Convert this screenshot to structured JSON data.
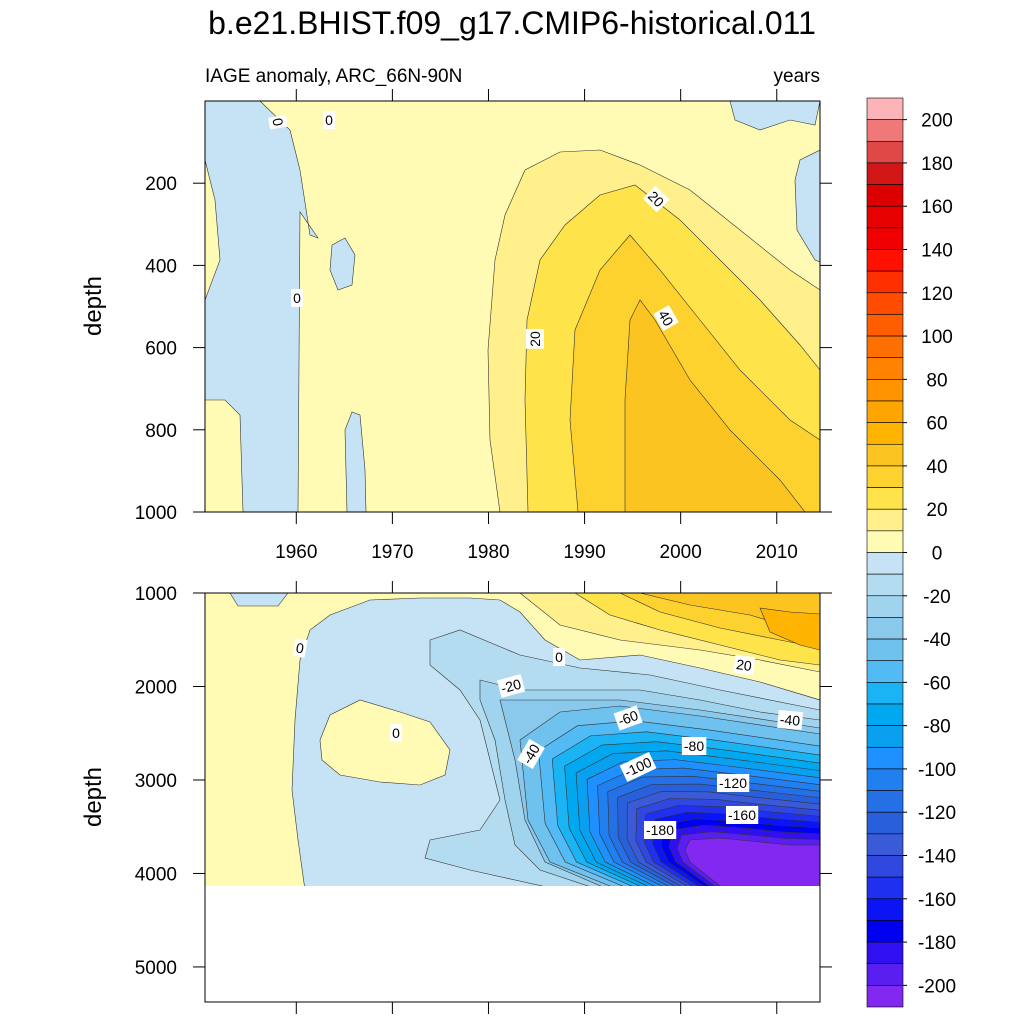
{
  "chart_data": {
    "type": "contour",
    "title": "b.e21.BHIST.f09_g17.CMIP6-historical.011",
    "panels": [
      {
        "left_label": "IAGE anomaly, ARC_66N-90N",
        "right_label": "years",
        "ylabel": "depth",
        "xlim": [
          1950.5,
          2014.5
        ],
        "xticks": [
          1960,
          1970,
          1980,
          1990,
          2000,
          2010
        ],
        "ylim": [
          0,
          1000
        ],
        "yticks": [
          200,
          400,
          600,
          800,
          1000
        ],
        "y_reversed": true,
        "contour_labels": [
          0,
          0,
          0,
          20,
          20,
          40
        ]
      },
      {
        "ylabel": "depth",
        "xlim": [
          1950.5,
          2014.5
        ],
        "xticks": [
          1960,
          1970,
          1980,
          1990,
          2000,
          2010
        ],
        "ylim": [
          1000,
          5375
        ],
        "yticks": [
          1000,
          2000,
          3000,
          4000,
          5000
        ],
        "y_reversed": true,
        "contour_labels": [
          0,
          -20,
          0,
          20,
          0,
          -40,
          -60,
          -80,
          -40,
          -100,
          -120,
          -160,
          -180
        ]
      }
    ],
    "colorbar": {
      "clim": [
        -210,
        210
      ],
      "ticks": [
        200,
        180,
        160,
        140,
        120,
        100,
        80,
        60,
        40,
        20,
        0,
        -20,
        -40,
        -60,
        -80,
        -100,
        -120,
        -140,
        -160,
        -180,
        -200
      ],
      "colors": [
        "#fcb4b8",
        "#f07878",
        "#e04848",
        "#d21616",
        "#dc0000",
        "#e60000",
        "#f00000",
        "#ff1000",
        "#ff3000",
        "#ff4c00",
        "#ff5e00",
        "#ff7000",
        "#ff8200",
        "#ff9300",
        "#ffa500",
        "#ffb400",
        "#fcc421",
        "#fdd22e",
        "#ffe34a",
        "#fff08c",
        "#fffab4",
        "#c5e3f5",
        "#b4dcf0",
        "#a0d4ee",
        "#8ac8ec",
        "#6fc1ee",
        "#52baf5",
        "#1ab4f5",
        "#00a8f0",
        "#0aa0f0",
        "#1e90ff",
        "#2080f0",
        "#2570e6",
        "#2860dc",
        "#3a5ad8",
        "#3048e0",
        "#2030f0",
        "#0a14f5",
        "#0000f0",
        "#3010f0",
        "#5a1ef0",
        "#8228f0"
      ]
    }
  }
}
